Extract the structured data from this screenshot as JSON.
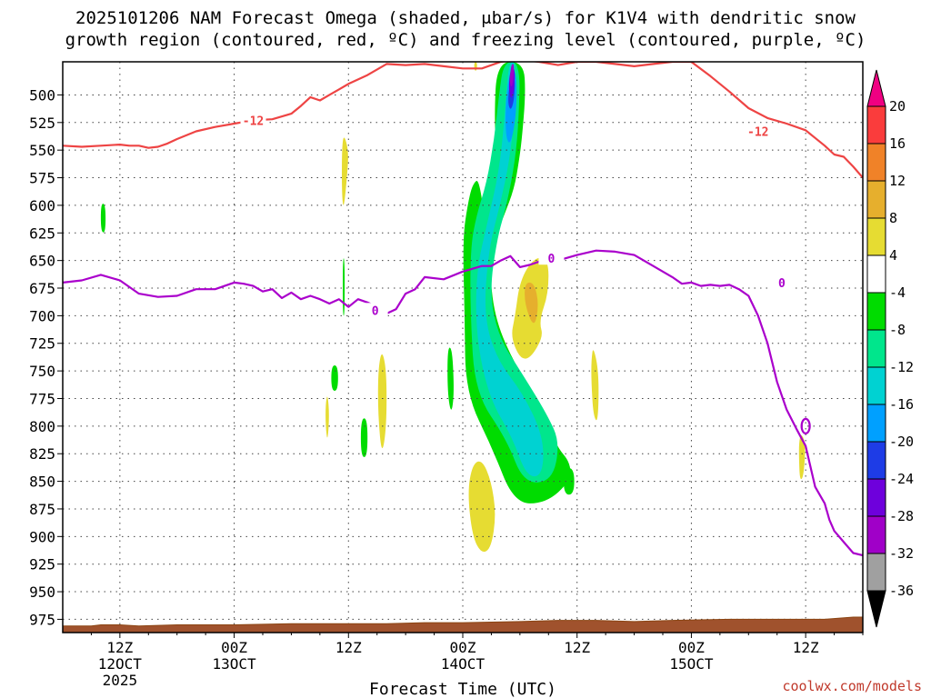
{
  "chart_data": {
    "type": "heatmap",
    "title_lines": [
      "2025101206 NAM Forecast Omega (shaded, μbar/s) for K1V4 with dendritic snow",
      "growth region (contoured, red, ºC) and freezing level (contoured, purple, ºC)"
    ],
    "xlabel": "Forecast Time (UTC)",
    "credit": "coolwx.com/models",
    "x_range_hours": [
      6,
      90
    ],
    "y_range_mb": [
      470,
      987
    ],
    "y_ticks": [
      500,
      525,
      550,
      575,
      600,
      625,
      650,
      675,
      700,
      725,
      750,
      775,
      800,
      825,
      850,
      875,
      900,
      925,
      950,
      975
    ],
    "x_ticks": [
      {
        "hour": 12,
        "lines": [
          "12Z",
          "12OCT",
          "2025"
        ]
      },
      {
        "hour": 24,
        "lines": [
          "00Z",
          "13OCT"
        ]
      },
      {
        "hour": 36,
        "lines": [
          "12Z"
        ]
      },
      {
        "hour": 48,
        "lines": [
          "00Z",
          "14OCT"
        ]
      },
      {
        "hour": 60,
        "lines": [
          "12Z"
        ]
      },
      {
        "hour": 72,
        "lines": [
          "00Z",
          "15OCT"
        ]
      },
      {
        "hour": 84,
        "lines": [
          "12Z"
        ]
      }
    ],
    "colorbar": {
      "levels": [
        -36,
        -32,
        -28,
        -24,
        -20,
        -16,
        -12,
        -8,
        -4,
        4,
        8,
        12,
        16,
        20
      ],
      "labels": [
        "20",
        "16",
        "12",
        "8",
        "4",
        "-4",
        "-8",
        "-12",
        "-16",
        "-20",
        "-24",
        "-28",
        "-32",
        "-36"
      ],
      "colors": [
        "#a0a0a0",
        "#a000c8",
        "#6e00dc",
        "#1e3ce6",
        "#00a0ff",
        "#00d2d2",
        "#00e68c",
        "#00dc00",
        "#ffffff",
        "#e6dc32",
        "#e6af2d",
        "#f08228",
        "#fa3c3c",
        "#f00082"
      ],
      "below_color": "#000000",
      "above_color": "#f00082"
    },
    "contours": {
      "dgz_minus12": {
        "color": "#ee4444",
        "label": "-12",
        "x": [
          6,
          8,
          10,
          12,
          13,
          14,
          15,
          16,
          17,
          18,
          20,
          22,
          24,
          26,
          28,
          30,
          31,
          32,
          33,
          34,
          35,
          36,
          38,
          40,
          42,
          44,
          46,
          48,
          50,
          52,
          54,
          56,
          58,
          60,
          62,
          64,
          66,
          68,
          70,
          72,
          74,
          76,
          78,
          80,
          82,
          84,
          85,
          86,
          87,
          88,
          89,
          90
        ],
        "y": [
          546,
          547,
          546,
          545,
          546,
          546,
          548,
          547,
          544,
          540,
          533,
          529,
          526,
          523,
          522,
          517,
          510,
          502,
          505,
          500,
          495,
          490,
          482,
          472,
          473,
          472,
          474,
          476,
          476,
          470,
          468,
          470,
          473,
          470,
          470,
          472,
          474,
          472,
          470,
          470,
          483,
          497,
          512,
          521,
          526,
          532,
          539,
          546,
          554,
          556,
          565,
          575
        ]
      },
      "freezing_level_0": {
        "color": "#aa00cc",
        "label": "0",
        "x": [
          6,
          8,
          10,
          12,
          14,
          16,
          18,
          20,
          22,
          24,
          25,
          26,
          27,
          28,
          29,
          30,
          31,
          32,
          33,
          34,
          35,
          36,
          37,
          38,
          39,
          40,
          41,
          42,
          43,
          44,
          46,
          48,
          50,
          51,
          52,
          53,
          54,
          55,
          56,
          57,
          58,
          60,
          62,
          64,
          66,
          68,
          70,
          71,
          72,
          73,
          74,
          75,
          76,
          77,
          78,
          79,
          80,
          81,
          82,
          83,
          84,
          85,
          86,
          86.5,
          87,
          88,
          88.5,
          89,
          90
        ],
        "y": [
          670,
          668,
          663,
          668,
          680,
          683,
          682,
          676,
          676,
          670,
          671,
          673,
          678,
          676,
          684,
          679,
          685,
          682,
          685,
          689,
          685,
          692,
          685,
          688,
          692,
          698,
          694,
          680,
          676,
          665,
          667,
          660,
          655,
          655,
          650,
          646,
          656,
          654,
          651,
          650,
          650,
          645,
          641,
          642,
          645,
          655,
          665,
          671,
          670,
          673,
          672,
          673,
          672,
          676,
          682,
          700,
          725,
          760,
          785,
          802,
          818,
          855,
          870,
          885,
          895,
          905,
          910,
          915,
          917
        ]
      },
      "small_loop": {
        "x": 84,
        "y": 800
      }
    },
    "omega_features": [
      {
        "bin": "4 to 8",
        "x": [
          55.5,
          57,
          57,
          56,
          56.5,
          54.5,
          53,
          53.5,
          54
        ],
        "y": [
          647,
          648,
          680,
          705,
          720,
          745,
          721,
          700,
          668
        ]
      },
      {
        "bin": "8 to 12",
        "x": [
          55.5,
          56,
          55.5,
          54.5,
          54.5
        ],
        "y": [
          670,
          690,
          712,
          690,
          670
        ]
      },
      {
        "bin": "4 to 8",
        "x": [
          35.5,
          36,
          35.9,
          35.5,
          35.3,
          35.3
        ],
        "y": [
          535,
          550,
          570,
          605,
          590,
          550
        ]
      },
      {
        "bin": "4 to 8",
        "x": [
          39.5,
          40,
          40,
          39.5,
          39.1,
          39.1
        ],
        "y": [
          730,
          750,
          800,
          828,
          790,
          750
        ]
      },
      {
        "bin": "4 to 8",
        "x": [
          33.8,
          34,
          33.8,
          33.6,
          33.6
        ],
        "y": [
          770,
          790,
          815,
          800,
          780
        ]
      },
      {
        "bin": "4 to 8",
        "x": [
          61.7,
          62.3,
          62.2,
          61.7,
          61.5,
          61.5
        ],
        "y": [
          727,
          752,
          798,
          790,
          760,
          740
        ]
      },
      {
        "bin": "4 to 8",
        "x": [
          50,
          51,
          51.5,
          51,
          50,
          49,
          48.5,
          49
        ],
        "y": [
          830,
          850,
          880,
          910,
          916,
          900,
          860,
          835
        ]
      },
      {
        "bin": "4 to 8",
        "x": [
          83.5,
          84,
          83.8,
          83.4,
          83.3,
          83.3
        ],
        "y": [
          806,
          815,
          845,
          850,
          830,
          815
        ]
      },
      {
        "bin": "4 to 8",
        "x": [
          49.2,
          49.5,
          49.5,
          49.2
        ],
        "y": [
          470,
          470,
          478,
          478
        ]
      }
    ]
  }
}
